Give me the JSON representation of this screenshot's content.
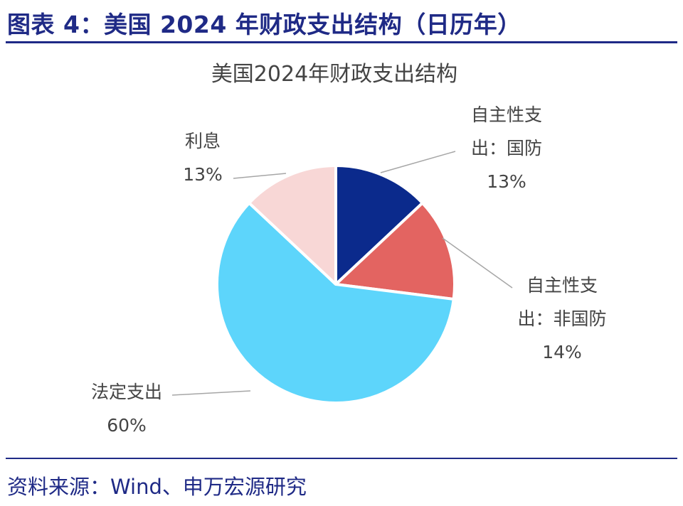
{
  "header": {
    "figure_title": "图表 4：美国 2024 年财政支出结构（日历年）"
  },
  "footer": {
    "source": "资料来源：Wind、申万宏源研究"
  },
  "chart_data": {
    "type": "pie",
    "title": "美国2024年财政支出结构",
    "slices": [
      {
        "name": "自主性支出：国防",
        "value": 13,
        "label_lines": [
          "自主性支",
          "出：国防",
          "13%"
        ],
        "color": "#0b2a8c"
      },
      {
        "name": "自主性支出：非国防",
        "value": 14,
        "label_lines": [
          "自主性支",
          "出：非国防",
          "14%"
        ],
        "color": "#e36461"
      },
      {
        "name": "法定支出",
        "value": 60,
        "label_lines": [
          "法定支出",
          "60%"
        ],
        "color": "#5dd5fb"
      },
      {
        "name": "利息",
        "value": 13,
        "label_lines": [
          "利息",
          "13%"
        ],
        "color": "#f8d7d6"
      }
    ],
    "start_angle_deg": 0,
    "direction": "clockwise",
    "legend": "none"
  }
}
